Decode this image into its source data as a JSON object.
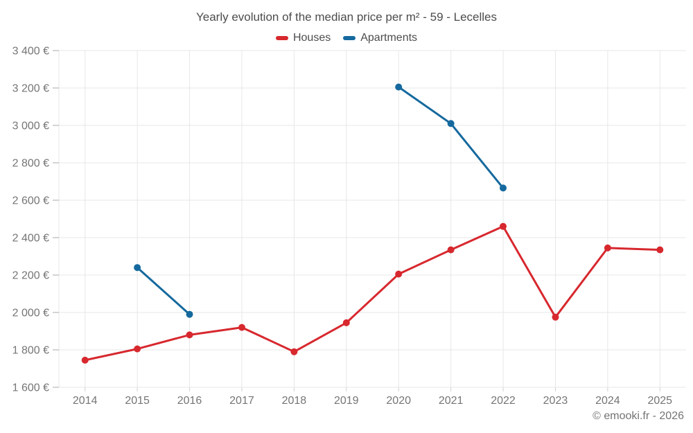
{
  "title": "Yearly evolution of the median price per m² - 59 - Lecelles",
  "footer": "© emooki.fr - 2026",
  "colors": {
    "houses": "#d7282e",
    "apartments": "#15699e",
    "gridline": "#e7e7e7",
    "y_tick": "#a8a8a8",
    "x_tick": "#cfcfcf",
    "axis_label": "#757575",
    "title_text": "#4c4c4c",
    "background": "#ffffff"
  },
  "chart_data": {
    "type": "line",
    "title": "Yearly evolution of the median price per m² - 59 - Lecelles",
    "categories": [
      "2014",
      "2015",
      "2016",
      "2017",
      "2018",
      "2019",
      "2020",
      "2021",
      "2022",
      "2023",
      "2024",
      "2025"
    ],
    "series": [
      {
        "name": "Houses",
        "color": "#d7282e",
        "values": [
          1745,
          1805,
          1880,
          1920,
          1790,
          1945,
          2205,
          2335,
          2460,
          1975,
          2345,
          2335
        ]
      },
      {
        "name": "Apartments",
        "color": "#15699e",
        "values": [
          null,
          2240,
          1990,
          null,
          null,
          null,
          3205,
          3010,
          2665,
          null,
          null,
          null
        ]
      }
    ],
    "xlabel": "",
    "ylabel": "",
    "ylim": [
      1600,
      3400
    ],
    "ytick_step": 200,
    "ytick_suffix": " €",
    "grid": true,
    "legend_position": "top"
  }
}
